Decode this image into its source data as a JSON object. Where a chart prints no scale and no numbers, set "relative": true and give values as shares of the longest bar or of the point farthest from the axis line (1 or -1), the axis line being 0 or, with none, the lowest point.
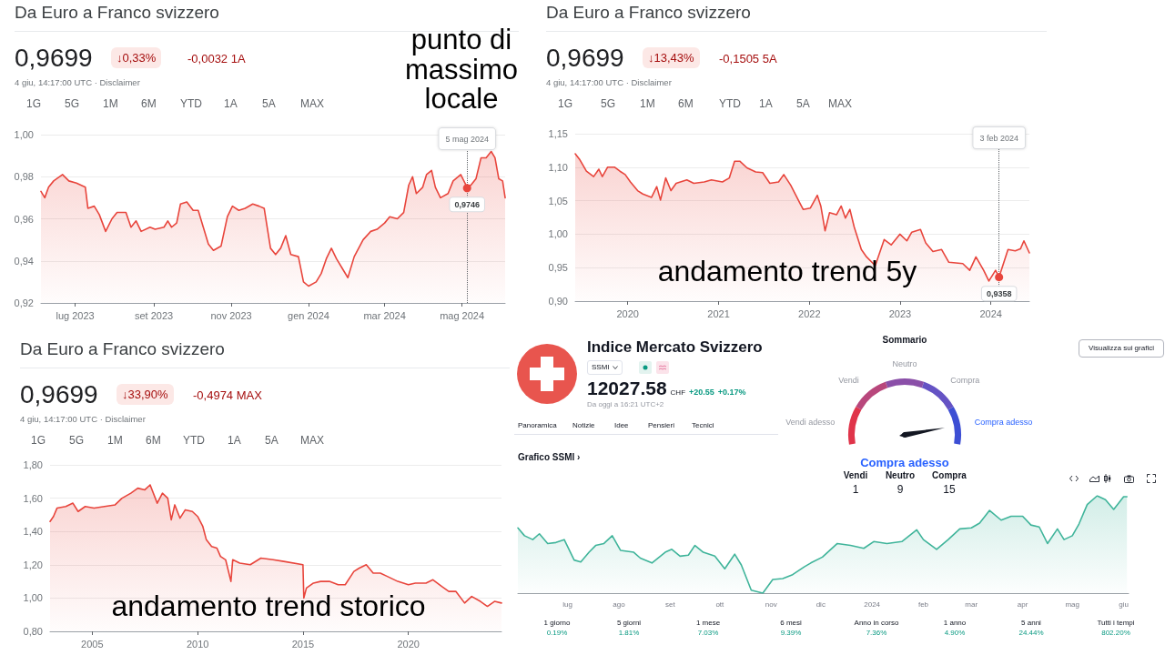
{
  "chart_data": [
    {
      "type": "area",
      "title": "Da Euro a Franco svizzero",
      "subtitle": "4 giu, 14:17:00 UTC · Disclaimer",
      "annotations": [
        "0,9699",
        "↓0,33%",
        "-0,0032 1A",
        "1G",
        "5G",
        "1M",
        "6M",
        "YTD",
        "1A",
        "5A",
        "MAX",
        "punto di massimo locale",
        {
          "text": "0,9746",
          "x": "2024-05-05",
          "y": 0.9746
        }
      ],
      "x": [
        "2023-06-04",
        "2023-06-07",
        "2023-06-10",
        "2023-06-14",
        "2023-06-21",
        "2023-06-26",
        "2023-07-02",
        "2023-07-09",
        "2023-07-11",
        "2023-07-16",
        "2023-07-20",
        "2023-07-25",
        "2023-07-30",
        "2023-08-03",
        "2023-08-10",
        "2023-08-14",
        "2023-08-18",
        "2023-08-22",
        "2023-08-29",
        "2023-09-02",
        "2023-09-09",
        "2023-09-12",
        "2023-09-15",
        "2023-09-19",
        "2023-09-22",
        "2023-09-27",
        "2023-10-02",
        "2023-10-06",
        "2023-10-10",
        "2023-10-14",
        "2023-10-18",
        "2023-10-24",
        "2023-10-29",
        "2023-11-02",
        "2023-11-07",
        "2023-11-12",
        "2023-11-18",
        "2023-11-23",
        "2023-11-27",
        "2023-12-02",
        "2023-12-06",
        "2023-12-10",
        "2023-12-14",
        "2023-12-18",
        "2023-12-24",
        "2023-12-28",
        "2024-01-01",
        "2024-01-07",
        "2024-01-11",
        "2024-01-15",
        "2024-01-19",
        "2024-01-23",
        "2024-01-28",
        "2024-02-01",
        "2024-02-06",
        "2024-02-13",
        "2024-02-19",
        "2024-02-24",
        "2024-03-01",
        "2024-03-05",
        "2024-03-11",
        "2024-03-16",
        "2024-03-20",
        "2024-03-23",
        "2024-03-26",
        "2024-03-31",
        "2024-04-03",
        "2024-04-07",
        "2024-04-10",
        "2024-04-14",
        "2024-04-20",
        "2024-04-24",
        "2024-04-30",
        "2024-05-05",
        "2024-05-08",
        "2024-05-12",
        "2024-05-16",
        "2024-05-20",
        "2024-05-24",
        "2024-05-27",
        "2024-05-30",
        "2024-06-02",
        "2024-06-04"
      ],
      "series": [
        {
          "color": "#e8453c",
          "values": [
            0.973,
            0.97,
            0.975,
            0.978,
            0.981,
            0.978,
            0.977,
            0.975,
            0.965,
            0.966,
            0.962,
            0.954,
            0.96,
            0.963,
            0.963,
            0.956,
            0.959,
            0.954,
            0.956,
            0.955,
            0.956,
            0.959,
            0.956,
            0.958,
            0.967,
            0.968,
            0.964,
            0.964,
            0.956,
            0.948,
            0.945,
            0.947,
            0.961,
            0.966,
            0.964,
            0.965,
            0.967,
            0.966,
            0.965,
            0.946,
            0.943,
            0.946,
            0.952,
            0.943,
            0.942,
            0.93,
            0.928,
            0.93,
            0.934,
            0.941,
            0.946,
            0.941,
            0.936,
            0.932,
            0.942,
            0.95,
            0.954,
            0.955,
            0.958,
            0.961,
            0.96,
            0.963,
            0.976,
            0.98,
            0.972,
            0.975,
            0.981,
            0.983,
            0.975,
            0.97,
            0.972,
            0.978,
            0.981,
            0.975,
            0.976,
            0.979,
            0.989,
            0.989,
            0.992,
            0.989,
            0.979,
            0.978,
            0.97
          ]
        }
      ],
      "xlim": [
        "2023-06-04",
        "2024-06-04"
      ],
      "xticks": [
        {
          "value": "2023-07-01",
          "label": "lug 2023"
        },
        {
          "value": "2023-09-01",
          "label": "set 2023"
        },
        {
          "value": "2023-11-01",
          "label": "nov 2023"
        },
        {
          "value": "2024-01-01",
          "label": "gen 2024"
        },
        {
          "value": "2024-03-01",
          "label": "mar 2024"
        },
        {
          "value": "2024-05-01",
          "label": "mag 2024"
        }
      ],
      "ylim": [
        0.92,
        1.0
      ],
      "yticks": [
        {
          "value": 0.92,
          "label": "0,92"
        },
        {
          "value": 0.94,
          "label": "0,94"
        },
        {
          "value": 0.96,
          "label": "0,96"
        },
        {
          "value": 0.98,
          "label": "0,98"
        },
        {
          "value": 1.0,
          "label": "1,00"
        }
      ],
      "ref_lines": [
        {
          "axis": "x",
          "value": "2024-05-05",
          "label": "5 mag 2024",
          "line_style": "dotted"
        }
      ],
      "grid": "y"
    },
    {
      "type": "area",
      "title": "Da Euro a Franco svizzero",
      "subtitle": "4 giu, 14:17:00 UTC · Disclaimer",
      "annotations": [
        "0,9699",
        "↓13,43%",
        "-0,1505 5A",
        "1G",
        "5G",
        "1M",
        "6M",
        "YTD",
        "1A",
        "5A",
        "MAX",
        "andamento trend 5y",
        {
          "text": "0,9358",
          "x": "2024-02-03",
          "y": 0.9358
        }
      ],
      "x": [
        "2019-06-04",
        "2019-06-21",
        "2019-07-19",
        "2019-08-17",
        "2019-09-07",
        "2019-09-21",
        "2019-10-12",
        "2019-11-10",
        "2019-12-01",
        "2019-12-22",
        "2020-01-12",
        "2020-02-10",
        "2020-03-02",
        "2020-04-06",
        "2020-04-27",
        "2020-05-12",
        "2020-06-02",
        "2020-06-23",
        "2020-07-14",
        "2020-08-26",
        "2020-09-23",
        "2020-11-04",
        "2020-12-03",
        "2021-01-16",
        "2021-02-13",
        "2021-03-06",
        "2021-03-27",
        "2021-04-25",
        "2021-05-30",
        "2021-06-27",
        "2021-07-26",
        "2021-08-30",
        "2021-09-20",
        "2021-10-18",
        "2021-11-23",
        "2021-12-07",
        "2022-01-05",
        "2022-02-02",
        "2022-02-16",
        "2022-03-05",
        "2022-03-23",
        "2022-04-20",
        "2022-05-09",
        "2022-05-26",
        "2022-06-13",
        "2022-06-30",
        "2022-07-29",
        "2022-08-19",
        "2022-09-23",
        "2022-10-29",
        "2022-11-26",
        "2022-12-31",
        "2023-01-28",
        "2023-02-17",
        "2023-03-24",
        "2023-04-14",
        "2023-05-13",
        "2023-06-17",
        "2023-07-16",
        "2023-09-10",
        "2023-10-08",
        "2023-11-02",
        "2023-12-03",
        "2023-12-24",
        "2024-01-20",
        "2024-02-03",
        "2024-02-18",
        "2024-03-10",
        "2024-04-08",
        "2024-04-29",
        "2024-05-13",
        "2024-06-04"
      ],
      "series": [
        {
          "color": "#e8453c",
          "values": [
            1.12,
            1.112,
            1.094,
            1.086,
            1.097,
            1.086,
            1.1,
            1.1,
            1.094,
            1.089,
            1.078,
            1.065,
            1.06,
            1.055,
            1.071,
            1.051,
            1.084,
            1.065,
            1.076,
            1.081,
            1.076,
            1.078,
            1.081,
            1.078,
            1.084,
            1.109,
            1.109,
            1.099,
            1.093,
            1.092,
            1.076,
            1.078,
            1.089,
            1.073,
            1.047,
            1.037,
            1.039,
            1.058,
            1.042,
            1.005,
            1.032,
            1.029,
            1.042,
            1.024,
            1.037,
            1.011,
            0.977,
            0.966,
            0.953,
            0.992,
            0.984,
            1.0,
            0.99,
            1.003,
            1.007,
            0.987,
            0.974,
            0.977,
            0.958,
            0.956,
            0.946,
            0.966,
            0.946,
            0.93,
            0.946,
            0.936,
            0.953,
            0.977,
            0.975,
            0.978,
            0.99,
            0.972
          ]
        }
      ],
      "xlim": [
        "2019-06-04",
        "2024-06-04"
      ],
      "xticks": [
        {
          "value": "2020-01-01",
          "label": "2020"
        },
        {
          "value": "2021-01-01",
          "label": "2021"
        },
        {
          "value": "2022-01-01",
          "label": "2022"
        },
        {
          "value": "2023-01-01",
          "label": "2023"
        },
        {
          "value": "2024-01-01",
          "label": "2024"
        }
      ],
      "ylim": [
        0.9,
        1.15
      ],
      "yticks": [
        {
          "value": 0.9,
          "label": "0,90"
        },
        {
          "value": 0.95,
          "label": "0,95"
        },
        {
          "value": 1.0,
          "label": "1,00"
        },
        {
          "value": 1.05,
          "label": "1,05"
        },
        {
          "value": 1.1,
          "label": "1,10"
        },
        {
          "value": 1.15,
          "label": "1,15"
        }
      ],
      "ref_lines": [
        {
          "axis": "x",
          "value": "2024-02-03",
          "label": "3 feb 2024",
          "line_style": "dotted"
        }
      ],
      "grid": "y"
    },
    {
      "type": "area",
      "title": "Da Euro a Franco svizzero",
      "subtitle": "4 giu, 14:17:00 UTC · Disclaimer",
      "annotations": [
        "0,9699",
        "↓33,90%",
        "-0,4974 MAX",
        "1G",
        "5G",
        "1M",
        "6M",
        "YTD",
        "1A",
        "5A",
        "MAX",
        "andamento trend storico"
      ],
      "x": [
        "2003-01",
        "2003-03",
        "2003-05",
        "2003-10",
        "2004-02",
        "2004-05",
        "2004-09",
        "2005-02",
        "2005-08",
        "2006-02",
        "2006-06",
        "2006-11",
        "2007-03",
        "2007-07",
        "2007-10",
        "2008-02",
        "2008-05",
        "2008-08",
        "2008-10",
        "2008-12",
        "2009-03",
        "2009-06",
        "2009-10",
        "2010-01",
        "2010-04",
        "2010-06",
        "2010-09",
        "2010-12",
        "2011-02",
        "2011-05",
        "2011-08",
        "2011-09",
        "2012-01",
        "2012-07",
        "2013-01",
        "2013-08",
        "2014-02",
        "2014-12-31",
        "2015-01-15",
        "2015-03",
        "2015-07",
        "2015-11",
        "2016-04",
        "2016-09",
        "2017-01",
        "2017-06",
        "2017-09",
        "2018-01",
        "2018-05",
        "2018-09",
        "2019-01",
        "2019-07",
        "2020-01",
        "2020-05",
        "2020-11",
        "2021-03",
        "2021-08",
        "2021-12",
        "2022-04",
        "2022-09",
        "2023-01",
        "2023-06",
        "2023-10",
        "2024-02",
        "2024-06"
      ],
      "series": [
        {
          "color": "#e8453c",
          "values": [
            1.46,
            1.49,
            1.54,
            1.55,
            1.57,
            1.52,
            1.55,
            1.54,
            1.55,
            1.56,
            1.6,
            1.63,
            1.66,
            1.65,
            1.68,
            1.57,
            1.63,
            1.6,
            1.47,
            1.56,
            1.48,
            1.53,
            1.52,
            1.49,
            1.43,
            1.35,
            1.31,
            1.3,
            1.25,
            1.23,
            1.1,
            1.23,
            1.21,
            1.2,
            1.24,
            1.23,
            1.22,
            1.2,
            1.0,
            1.06,
            1.09,
            1.1,
            1.1,
            1.08,
            1.08,
            1.16,
            1.18,
            1.2,
            1.15,
            1.15,
            1.13,
            1.1,
            1.08,
            1.09,
            1.09,
            1.11,
            1.07,
            1.04,
            1.04,
            0.97,
            1.01,
            0.98,
            0.95,
            0.98,
            0.97
          ]
        }
      ],
      "xlim": [
        "2003-01",
        "2024-06"
      ],
      "xticks": [
        {
          "value": "2005-01-01",
          "label": "2005"
        },
        {
          "value": "2010-01-01",
          "label": "2010"
        },
        {
          "value": "2015-01-01",
          "label": "2015"
        },
        {
          "value": "2020-01-01",
          "label": "2020"
        }
      ],
      "ylim": [
        0.8,
        1.8
      ],
      "yticks": [
        {
          "value": 0.8,
          "label": "0,80"
        },
        {
          "value": 1.0,
          "label": "1,00"
        },
        {
          "value": 1.2,
          "label": "1,20"
        },
        {
          "value": 1.4,
          "label": "1,40"
        },
        {
          "value": 1.6,
          "label": "1,60"
        },
        {
          "value": 1.8,
          "label": "1,80"
        }
      ],
      "grid": "y"
    },
    {
      "type": "other",
      "title": "Indice Mercato Svizzero",
      "annotations": [
        "SSMI",
        "12027.58",
        "CHF",
        "+20.55",
        "+0.17%",
        "Da oggi a 16:21 UTC+2",
        "Panoramica",
        "Notizie",
        "Idee",
        "Pensieri",
        "Tecnici"
      ]
    },
    {
      "type": "donut",
      "title": "Sommario",
      "categories": [
        "Vendi adesso",
        "Vendi",
        "Neutro",
        "Compra",
        "Compra adesso"
      ],
      "values": [
        20,
        20,
        20,
        20,
        20
      ],
      "colors": [
        "#e0344a",
        "#b8477c",
        "#8a4fa8",
        "#6553c4",
        "#3d4fd4"
      ],
      "needle": "Compra adesso",
      "annotations": [
        "Vendi",
        "1",
        "Neutro",
        "9",
        "Compra",
        "15",
        "Visualizza sui grafici"
      ]
    },
    {
      "type": "area",
      "title": "Grafico SSMI ›",
      "relative": true,
      "annotations": [
        "1 giorno",
        "0.19%",
        "5 giorni",
        "1.81%",
        "1 mese",
        "7.03%",
        "6 mesi",
        "9.39%",
        "Anno in corso",
        "7.36%",
        "1 anno",
        "4.90%",
        "5 anni",
        "24.44%",
        "Tutti i tempi",
        "802.20%"
      ],
      "x": [
        "2023-06-01",
        "2023-06-05",
        "2023-06-10",
        "2023-06-14",
        "2023-06-19",
        "2023-06-24",
        "2023-06-29",
        "2023-07-05",
        "2023-07-09",
        "2023-07-14",
        "2023-07-18",
        "2023-07-23",
        "2023-07-28",
        "2023-08-02",
        "2023-08-10",
        "2023-08-14",
        "2023-08-21",
        "2023-08-29",
        "2023-09-02",
        "2023-09-07",
        "2023-09-12",
        "2023-09-16",
        "2023-09-21",
        "2023-09-28",
        "2023-10-04",
        "2023-10-10",
        "2023-10-14",
        "2023-10-20",
        "2023-10-27",
        "2023-11-02",
        "2023-11-08",
        "2023-11-14",
        "2023-11-21",
        "2023-11-25",
        "2023-12-02",
        "2023-12-11",
        "2023-12-19",
        "2023-12-27",
        "2024-01-02",
        "2024-01-10",
        "2024-01-19",
        "2024-01-28",
        "2024-02-01",
        "2024-02-09",
        "2024-02-16",
        "2024-02-23",
        "2024-03-01",
        "2024-03-06",
        "2024-03-12",
        "2024-03-19",
        "2024-03-25",
        "2024-04-01",
        "2024-04-06",
        "2024-04-11",
        "2024-04-16",
        "2024-04-22",
        "2024-04-26",
        "2024-05-01",
        "2024-05-05",
        "2024-05-10",
        "2024-05-16",
        "2024-05-21",
        "2024-05-26",
        "2024-06-01",
        "2024-06-03"
      ],
      "series": [
        {
          "color": "#3fb49a",
          "values": [
            0.67,
            0.59,
            0.55,
            0.61,
            0.51,
            0.52,
            0.55,
            0.34,
            0.32,
            0.42,
            0.49,
            0.51,
            0.59,
            0.44,
            0.42,
            0.36,
            0.31,
            0.42,
            0.45,
            0.38,
            0.39,
            0.49,
            0.42,
            0.38,
            0.25,
            0.4,
            0.29,
            0.03,
            0,
            0.14,
            0.15,
            0.19,
            0.27,
            0.31,
            0.37,
            0.51,
            0.49,
            0.46,
            0.53,
            0.51,
            0.53,
            0.65,
            0.55,
            0.45,
            0.55,
            0.66,
            0.67,
            0.72,
            0.85,
            0.75,
            0.79,
            0.79,
            0.7,
            0.68,
            0.51,
            0.66,
            0.55,
            0.59,
            0.71,
            0.91,
            1,
            0.96,
            0.86,
            0.99,
            0.99
          ]
        }
      ],
      "xlim": [
        "2023-06-01",
        "2024-06-04"
      ],
      "xticks": [
        {
          "value": "2023-07-01",
          "label": "lug"
        },
        {
          "value": "2023-08-01",
          "label": "ago"
        },
        {
          "value": "2023-09-01",
          "label": "set"
        },
        {
          "value": "2023-10-01",
          "label": "ott"
        },
        {
          "value": "2023-11-01",
          "label": "nov"
        },
        {
          "value": "2023-12-01",
          "label": "dic"
        },
        {
          "value": "2024-01-01",
          "label": "2024"
        },
        {
          "value": "2024-02-01",
          "label": "feb"
        },
        {
          "value": "2024-03-01",
          "label": "mar"
        },
        {
          "value": "2024-04-01",
          "label": "apr"
        },
        {
          "value": "2024-05-01",
          "label": "mag"
        },
        {
          "value": "2024-06-01",
          "label": "giu"
        }
      ]
    }
  ]
}
